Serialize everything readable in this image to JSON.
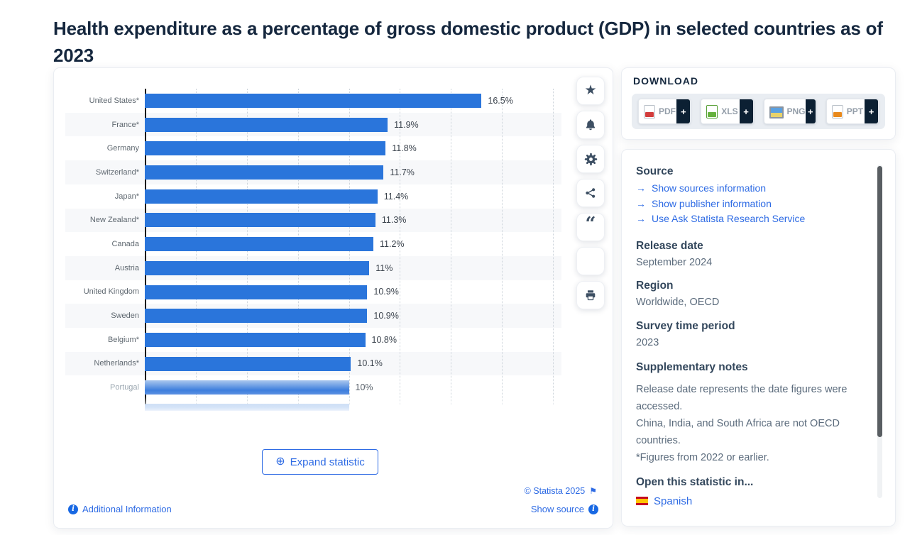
{
  "title": "Health expenditure as a percentage of gross domestic product (GDP) in selected countries as of 2023",
  "colors": {
    "bar_blue": "#2a75db",
    "link_blue": "#2e6be4",
    "navy": "#0c2033",
    "heading_slate": "#33475c",
    "body_gray": "#5b6b7c"
  },
  "chart_data": {
    "type": "bar",
    "orientation": "horizontal",
    "title": "Health expenditure as a percentage of gross domestic product (GDP) in selected countries as of 2023",
    "categories": [
      "United States*",
      "France*",
      "Germany",
      "Switzerland*",
      "Japan*",
      "New Zealand*",
      "Canada",
      "Austria",
      "United Kingdom",
      "Sweden",
      "Belgium*",
      "Netherlands*",
      "Portugal"
    ],
    "values": [
      16.5,
      11.9,
      11.8,
      11.7,
      11.4,
      11.3,
      11.2,
      11.0,
      10.9,
      10.9,
      10.8,
      10.1,
      10.0
    ],
    "value_labels": [
      "16.5%",
      "11.9%",
      "11.8%",
      "11.7%",
      "11.4%",
      "11.3%",
      "11.2%",
      "11%",
      "10.9%",
      "10.9%",
      "10.8%",
      "10.1%",
      "10%"
    ],
    "xlim": [
      0,
      20
    ],
    "gridline_step_percent": 2.5,
    "grid": true,
    "legend": "none",
    "bar_color": "#2a75db",
    "partial_next_bar_value": 10.0
  },
  "toolbar": {
    "items": [
      {
        "icon": "star-icon"
      },
      {
        "icon": "bell-icon"
      },
      {
        "icon": "gear-icon"
      },
      {
        "icon": "share-icon"
      },
      {
        "icon": "quote-icon"
      },
      {
        "icon": "spain-flag-icon"
      },
      {
        "icon": "printer-icon"
      }
    ]
  },
  "chart_footer": {
    "expand_label": "Expand statistic",
    "copyright": "© Statista 2025",
    "additional_information": "Additional Information",
    "show_source": "Show source"
  },
  "download": {
    "heading": "DOWNLOAD",
    "plus": "+",
    "buttons": [
      {
        "label": "PDF",
        "icon": "pdf-file-icon"
      },
      {
        "label": "XLS",
        "icon": "xls-file-icon"
      },
      {
        "label": "PNG",
        "icon": "png-file-icon"
      },
      {
        "label": "PPT",
        "icon": "ppt-file-icon"
      }
    ]
  },
  "details": {
    "source_heading": "Source",
    "source_links": [
      "Show sources information",
      "Show publisher information",
      "Use Ask Statista Research Service"
    ],
    "release_date_heading": "Release date",
    "release_date": "September 2024",
    "region_heading": "Region",
    "region": "Worldwide, OECD",
    "survey_heading": "Survey time period",
    "survey": "2023",
    "notes_heading": "Supplementary notes",
    "notes": [
      "Release date represents the date figures were accessed.",
      "China, India, and South Africa are not OECD countries.",
      "*Figures from 2022 or earlier."
    ],
    "open_in_heading": "Open this statistic in...",
    "open_in_language": "Spanish"
  }
}
